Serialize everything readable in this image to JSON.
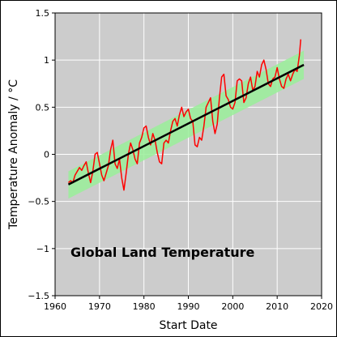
{
  "chart_data": {
    "type": "line",
    "xlabel": "Start Date",
    "ylabel": "Temperature Anomaly / °C",
    "annotation": "Global Land Temperature",
    "xlim": [
      1960,
      2020
    ],
    "ylim": [
      -1.5,
      1.5
    ],
    "x_ticks": [
      1960,
      1970,
      1980,
      1990,
      2000,
      2010,
      2020
    ],
    "y_ticks": [
      -1.5,
      -1,
      -0.5,
      0,
      0.5,
      1,
      1.5
    ],
    "y_tick_labels": [
      "−1.5",
      "−1",
      "−0.5",
      "0",
      "0.5",
      "1",
      "1.5"
    ],
    "grid": true,
    "background_color": "#cccccc",
    "series": [
      {
        "color": "#ff0000",
        "x": [
          1963.0,
          1963.5,
          1964.0,
          1964.5,
          1965.0,
          1965.5,
          1966.0,
          1966.5,
          1967.0,
          1967.5,
          1968.0,
          1968.5,
          1969.0,
          1969.5,
          1970.0,
          1970.5,
          1971.0,
          1971.5,
          1972.0,
          1972.5,
          1973.0,
          1973.5,
          1974.0,
          1974.5,
          1975.0,
          1975.5,
          1976.0,
          1976.5,
          1977.0,
          1977.5,
          1978.0,
          1978.5,
          1979.0,
          1979.5,
          1980.0,
          1980.5,
          1981.0,
          1981.5,
          1982.0,
          1982.5,
          1983.0,
          1983.5,
          1984.0,
          1984.5,
          1985.0,
          1985.5,
          1986.0,
          1986.5,
          1987.0,
          1987.5,
          1988.0,
          1988.5,
          1989.0,
          1989.5,
          1990.0,
          1990.5,
          1991.0,
          1991.5,
          1992.0,
          1992.5,
          1993.0,
          1993.5,
          1994.0,
          1994.5,
          1995.0,
          1995.5,
          1996.0,
          1996.5,
          1997.0,
          1997.5,
          1998.0,
          1998.5,
          1999.0,
          1999.5,
          2000.0,
          2000.5,
          2001.0,
          2001.5,
          2002.0,
          2002.5,
          2003.0,
          2003.5,
          2004.0,
          2004.5,
          2005.0,
          2005.5,
          2006.0,
          2006.5,
          2007.0,
          2007.5,
          2008.0,
          2008.5,
          2009.0,
          2009.5,
          2010.0,
          2010.5,
          2011.0,
          2011.5,
          2012.0,
          2012.5,
          2013.0,
          2013.5,
          2014.0,
          2014.5,
          2015.0,
          2015.3
        ],
        "y": [
          -0.3,
          -0.28,
          -0.3,
          -0.22,
          -0.18,
          -0.14,
          -0.17,
          -0.12,
          -0.08,
          -0.2,
          -0.3,
          -0.18,
          0.0,
          0.02,
          -0.1,
          -0.22,
          -0.28,
          -0.2,
          -0.12,
          0.05,
          0.15,
          -0.1,
          -0.15,
          -0.05,
          -0.25,
          -0.38,
          -0.2,
          0.0,
          0.12,
          0.05,
          -0.05,
          -0.1,
          0.12,
          0.18,
          0.28,
          0.3,
          0.18,
          0.1,
          0.22,
          0.15,
          0.02,
          -0.08,
          -0.1,
          0.12,
          0.15,
          0.12,
          0.25,
          0.35,
          0.38,
          0.3,
          0.42,
          0.5,
          0.4,
          0.45,
          0.48,
          0.38,
          0.35,
          0.1,
          0.08,
          0.18,
          0.15,
          0.3,
          0.5,
          0.55,
          0.6,
          0.35,
          0.22,
          0.32,
          0.6,
          0.82,
          0.85,
          0.62,
          0.58,
          0.5,
          0.48,
          0.55,
          0.78,
          0.8,
          0.78,
          0.55,
          0.6,
          0.75,
          0.82,
          0.68,
          0.72,
          0.88,
          0.82,
          0.95,
          1.0,
          0.9,
          0.75,
          0.72,
          0.8,
          0.82,
          0.92,
          0.8,
          0.72,
          0.7,
          0.8,
          0.85,
          0.78,
          0.85,
          0.9,
          0.88,
          1.05,
          1.22
        ]
      },
      {
        "color": "#000000",
        "x": [
          1963,
          2016
        ],
        "y": [
          -0.32,
          0.95
        ]
      }
    ],
    "band": {
      "color": "#99ee99",
      "x": [
        1963,
        2016
      ],
      "upper": [
        -0.18,
        1.1
      ],
      "lower": [
        -0.47,
        0.8
      ]
    }
  }
}
